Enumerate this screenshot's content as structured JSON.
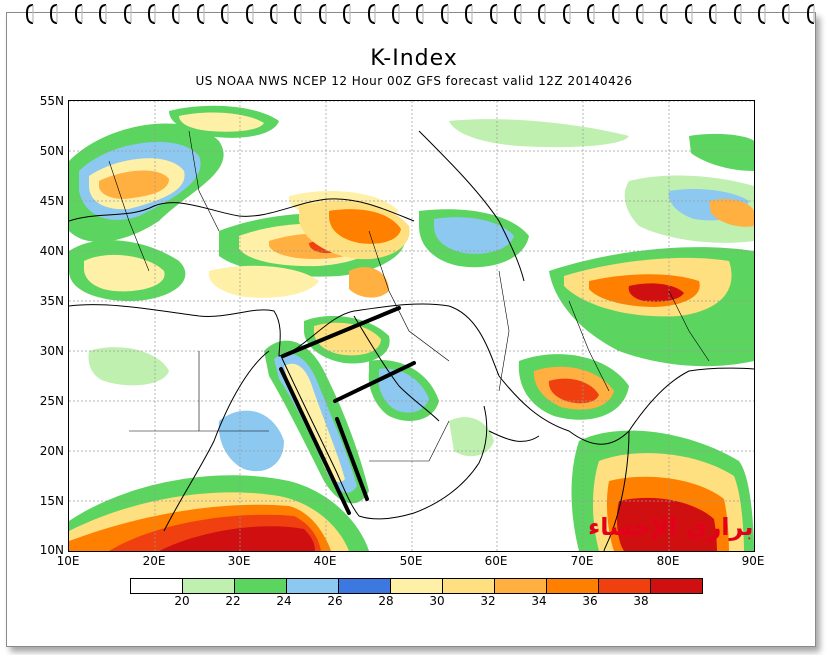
{
  "title": "K-Index",
  "subtitle": "US NOAA NWS NCEP 12 Hour 00Z GFS forecast valid 12Z 20140426",
  "watermark": "براري الإحساء",
  "map": {
    "lat_range": [
      10,
      56
    ],
    "lon_range": [
      10,
      90
    ],
    "lat_ticks": [
      "55N",
      "50N",
      "45N",
      "40N",
      "35N",
      "30N",
      "25N",
      "20N",
      "15N",
      "10N"
    ],
    "lon_ticks": [
      "10E",
      "20E",
      "30E",
      "40E",
      "50E",
      "60E",
      "70E",
      "80E",
      "90E"
    ]
  },
  "colorbar": {
    "labels": [
      "20",
      "22",
      "24",
      "26",
      "28",
      "30",
      "32",
      "34",
      "36",
      "38"
    ],
    "colors": [
      "#ffffff",
      "#c0f0b0",
      "#5cd460",
      "#8cc8f0",
      "#3c78e0",
      "#fff0a8",
      "#ffe080",
      "#ffb040",
      "#ff8000",
      "#f04010",
      "#d01010"
    ]
  }
}
